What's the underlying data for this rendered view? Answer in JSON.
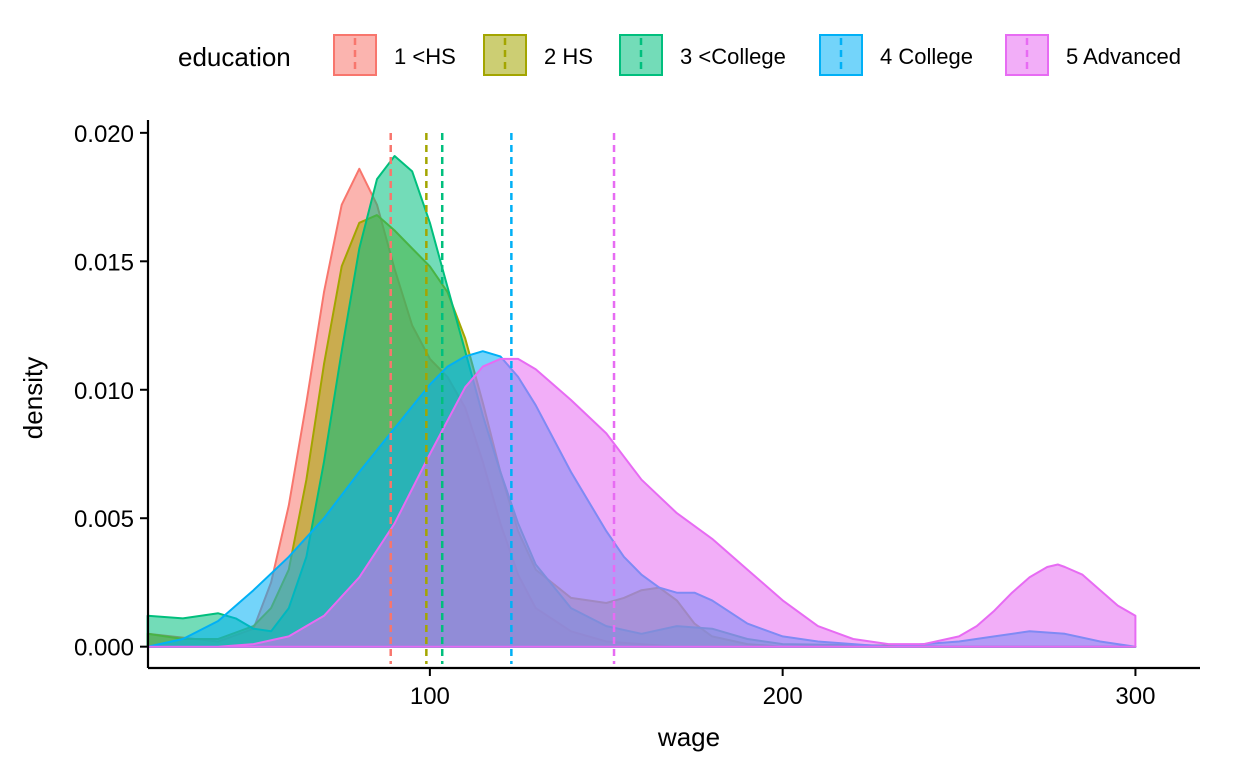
{
  "chart_data": {
    "type": "area",
    "xlabel": "wage",
    "ylabel": "density",
    "xlim": [
      20.1,
      318.3
    ],
    "ylim": [
      -0.00083,
      0.0205
    ],
    "x_ticks": [
      100,
      200,
      300
    ],
    "x_tick_labels": [
      "100",
      "200",
      "300"
    ],
    "y_ticks": [
      0,
      0.005,
      0.01,
      0.015,
      0.02
    ],
    "y_tick_labels": [
      "0.000",
      "0.005",
      "0.010",
      "0.015",
      "0.020"
    ],
    "grid": false,
    "legend": {
      "title": "education",
      "position": "top"
    },
    "series": [
      {
        "name": "1 <HS",
        "color": "#F8766D",
        "mean": 88.9,
        "x": [
          20,
          40,
          50,
          55,
          60,
          65,
          70,
          75,
          80,
          85,
          90,
          95,
          100,
          105,
          110,
          115,
          120,
          125,
          130,
          140,
          150,
          160,
          170,
          180,
          190,
          200,
          250,
          300
        ],
        "y": [
          0.0005,
          0.0002,
          0.0007,
          0.0025,
          0.0055,
          0.0095,
          0.0138,
          0.0172,
          0.0186,
          0.0172,
          0.0147,
          0.0125,
          0.0112,
          0.0105,
          0.0093,
          0.0072,
          0.0048,
          0.0028,
          0.0015,
          0.0006,
          0.0002,
          0.0001,
          0.0,
          0.0,
          0.0,
          0.0,
          0.0,
          0.0
        ]
      },
      {
        "name": "2 HS",
        "color": "#A3A500",
        "mean": 99.0,
        "x": [
          20,
          30,
          40,
          50,
          55,
          60,
          65,
          70,
          75,
          80,
          85,
          90,
          95,
          100,
          105,
          110,
          115,
          120,
          125,
          130,
          140,
          150,
          155,
          160,
          165,
          170,
          175,
          180,
          190,
          200,
          250,
          300
        ],
        "y": [
          0.0005,
          0.0003,
          0.0003,
          0.0008,
          0.0015,
          0.003,
          0.0065,
          0.011,
          0.0148,
          0.0165,
          0.0168,
          0.0162,
          0.0155,
          0.0148,
          0.0138,
          0.012,
          0.0095,
          0.0068,
          0.0045,
          0.003,
          0.0019,
          0.0017,
          0.0019,
          0.0022,
          0.0023,
          0.0018,
          0.0009,
          0.0004,
          0.0001,
          0.0,
          0.0,
          0.0
        ]
      },
      {
        "name": "3 <College",
        "color": "#00BF7D",
        "mean": 103.5,
        "x": [
          20,
          30,
          40,
          45,
          50,
          55,
          60,
          65,
          70,
          75,
          80,
          85,
          90,
          95,
          100,
          105,
          110,
          115,
          120,
          125,
          130,
          140,
          150,
          160,
          170,
          180,
          190,
          200,
          250,
          300
        ],
        "y": [
          0.0012,
          0.0011,
          0.0013,
          0.0011,
          0.0007,
          0.0006,
          0.0015,
          0.0035,
          0.0072,
          0.0115,
          0.0155,
          0.0182,
          0.0191,
          0.0185,
          0.0165,
          0.014,
          0.0115,
          0.009,
          0.0068,
          0.0048,
          0.0032,
          0.0015,
          0.0008,
          0.0005,
          0.0008,
          0.0007,
          0.0003,
          0.0001,
          0.0,
          0.0
        ]
      },
      {
        "name": "4 College",
        "color": "#00B0F6",
        "mean": 123.1,
        "x": [
          20,
          30,
          40,
          50,
          60,
          70,
          80,
          90,
          100,
          105,
          110,
          115,
          120,
          125,
          130,
          140,
          150,
          155,
          160,
          165,
          170,
          175,
          180,
          190,
          200,
          210,
          220,
          230,
          240,
          250,
          260,
          270,
          280,
          290,
          300
        ],
        "y": [
          0.0,
          0.0003,
          0.001,
          0.0022,
          0.0035,
          0.005,
          0.0068,
          0.0085,
          0.0102,
          0.0109,
          0.0113,
          0.0115,
          0.0113,
          0.0105,
          0.0094,
          0.0068,
          0.0045,
          0.0035,
          0.0028,
          0.0023,
          0.0021,
          0.0021,
          0.0018,
          0.0009,
          0.0004,
          0.0002,
          0.0001,
          0.0,
          0.0001,
          0.0002,
          0.0004,
          0.0006,
          0.0005,
          0.0002,
          0.0
        ]
      },
      {
        "name": "5 Advanced",
        "color": "#E76BF3",
        "mean": 152.2,
        "x": [
          20,
          40,
          50,
          60,
          70,
          80,
          90,
          100,
          110,
          115,
          120,
          125,
          130,
          140,
          150,
          160,
          170,
          180,
          190,
          200,
          210,
          220,
          230,
          240,
          250,
          255,
          260,
          265,
          270,
          275,
          278,
          280,
          285,
          290,
          295,
          300
        ],
        "y": [
          0.0,
          0.0,
          0.0001,
          0.0004,
          0.0012,
          0.0027,
          0.0048,
          0.0075,
          0.0101,
          0.0109,
          0.0112,
          0.0112,
          0.0108,
          0.0096,
          0.0083,
          0.0065,
          0.0052,
          0.0042,
          0.003,
          0.0018,
          0.0008,
          0.0003,
          0.0001,
          0.0001,
          0.0004,
          0.0008,
          0.0014,
          0.0021,
          0.0027,
          0.0031,
          0.0032,
          0.0031,
          0.0028,
          0.0022,
          0.0016,
          0.0012
        ]
      }
    ]
  }
}
